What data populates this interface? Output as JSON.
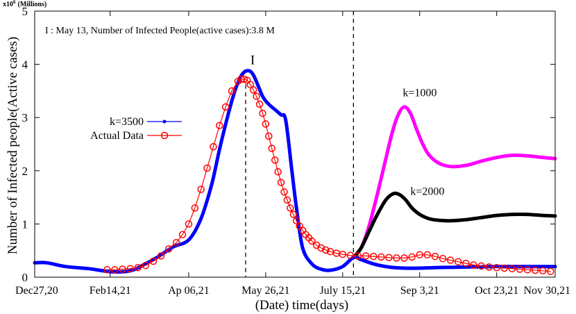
{
  "chart_data": {
    "type": "line",
    "ylabel": "Number of Infected people(Active cases)",
    "xlabel": "(Date) time(days)",
    "y_multiplier_label": "x10",
    "y_multiplier_exp": "6",
    "y_multiplier_unit": "(Millions)",
    "xlim": [
      0,
      338
    ],
    "ylim": [
      0,
      5
    ],
    "x_ticks": [
      {
        "x": 0,
        "label": "Dec27,20"
      },
      {
        "x": 49,
        "label": "Feb14,21"
      },
      {
        "x": 100,
        "label": "Ap 06,21"
      },
      {
        "x": 150,
        "label": "May 26,21"
      },
      {
        "x": 200,
        "label": "July 15,21"
      },
      {
        "x": 250,
        "label": "Sep 3,21"
      },
      {
        "x": 300,
        "label": "Oct 23,21"
      },
      {
        "x": 338,
        "label": "Nov 30,21"
      }
    ],
    "y_ticks": [
      0,
      1,
      2,
      3,
      4,
      5
    ],
    "annotation_text": "I : May 13, Number of Infected People(active cases):3.8 M",
    "peak_marker": {
      "x": 137,
      "label": "I"
    },
    "intervention_x": 207,
    "legend_position": "center-left",
    "series": [
      {
        "name": "k=3500",
        "style": "line",
        "color": "#0000ff",
        "x": [
          0,
          8,
          20,
          35,
          50,
          62,
          70,
          80,
          90,
          100,
          108,
          115,
          120,
          126,
          130,
          134,
          138,
          142,
          148,
          152,
          156,
          160,
          163,
          167,
          170,
          174,
          180,
          186,
          192,
          200,
          207,
          212,
          220,
          230,
          240,
          250,
          260,
          280,
          300,
          320,
          338
        ],
        "y": [
          0.27,
          0.27,
          0.2,
          0.16,
          0.1,
          0.12,
          0.22,
          0.38,
          0.57,
          0.7,
          1.1,
          1.75,
          2.4,
          3.1,
          3.5,
          3.78,
          3.88,
          3.8,
          3.4,
          3.25,
          3.15,
          3.05,
          2.95,
          2.0,
          1.3,
          0.55,
          0.25,
          0.15,
          0.13,
          0.2,
          0.37,
          0.33,
          0.25,
          0.19,
          0.17,
          0.17,
          0.18,
          0.19,
          0.2,
          0.2,
          0.2
        ]
      },
      {
        "name": "Actual Data",
        "style": "markers",
        "color": "#ff0000",
        "x": [
          47,
          52,
          57,
          62,
          67,
          72,
          77,
          82,
          87,
          92,
          96,
          100,
          104,
          108,
          112,
          116,
          120,
          124,
          128,
          132,
          134,
          136,
          138,
          140,
          142,
          144,
          146,
          148,
          150,
          152,
          154,
          156,
          158,
          160,
          162,
          164,
          166,
          168,
          170,
          172,
          174,
          176,
          178,
          180,
          183,
          186,
          189,
          192,
          196,
          200,
          205,
          210,
          215,
          220,
          225,
          230,
          235,
          240,
          245,
          250,
          255,
          260,
          265,
          270,
          275,
          280,
          285,
          290,
          295,
          300,
          305,
          310,
          315,
          320,
          325,
          330,
          335
        ],
        "y": [
          0.14,
          0.14,
          0.15,
          0.16,
          0.18,
          0.22,
          0.3,
          0.4,
          0.53,
          0.65,
          0.8,
          1.0,
          1.3,
          1.65,
          2.05,
          2.45,
          2.85,
          3.2,
          3.5,
          3.68,
          3.72,
          3.72,
          3.7,
          3.62,
          3.52,
          3.4,
          3.25,
          3.08,
          2.88,
          2.65,
          2.42,
          2.2,
          1.98,
          1.78,
          1.6,
          1.45,
          1.3,
          1.18,
          1.06,
          0.96,
          0.88,
          0.8,
          0.74,
          0.68,
          0.6,
          0.55,
          0.51,
          0.48,
          0.45,
          0.43,
          0.41,
          0.4,
          0.4,
          0.39,
          0.38,
          0.37,
          0.36,
          0.36,
          0.38,
          0.42,
          0.42,
          0.39,
          0.35,
          0.32,
          0.29,
          0.26,
          0.23,
          0.21,
          0.19,
          0.18,
          0.17,
          0.16,
          0.15,
          0.14,
          0.13,
          0.12,
          0.11
        ]
      },
      {
        "name": "k=1000",
        "style": "line",
        "color": "#ff00ff",
        "label_at": [
          239,
          3.4
        ],
        "x": [
          207,
          212,
          217,
          222,
          227,
          232,
          236,
          240,
          244,
          248,
          252,
          256,
          262,
          270,
          280,
          290,
          300,
          310,
          320,
          330,
          338
        ],
        "y": [
          0.37,
          0.55,
          0.95,
          1.5,
          2.1,
          2.7,
          3.05,
          3.2,
          3.08,
          2.78,
          2.5,
          2.3,
          2.15,
          2.08,
          2.1,
          2.18,
          2.25,
          2.29,
          2.28,
          2.25,
          2.23
        ]
      },
      {
        "name": "k=2000",
        "style": "line",
        "color": "#000000",
        "label_at": [
          244,
          1.55
        ],
        "x": [
          207,
          212,
          217,
          222,
          228,
          233,
          237,
          241,
          245,
          250,
          256,
          262,
          270,
          280,
          290,
          300,
          310,
          320,
          330,
          338
        ],
        "y": [
          0.37,
          0.55,
          0.85,
          1.15,
          1.45,
          1.57,
          1.55,
          1.45,
          1.3,
          1.18,
          1.1,
          1.07,
          1.06,
          1.08,
          1.12,
          1.16,
          1.18,
          1.18,
          1.16,
          1.15
        ]
      }
    ]
  }
}
